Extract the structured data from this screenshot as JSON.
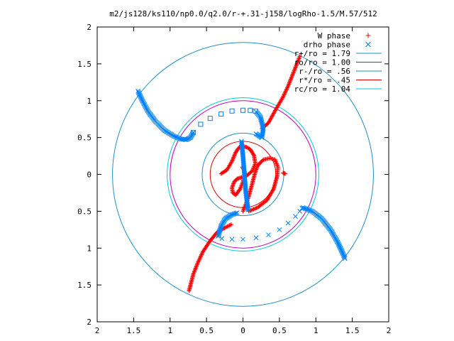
{
  "chart_data": {
    "type": "scatter",
    "title": "m2/js128/ks110/np0.0/q2.0/r-+.31-j158/logRho-1.5/M.57/512",
    "xlim": [
      -2,
      2
    ],
    "ylim": [
      -2,
      2
    ],
    "x_ticks": [
      -2,
      -1.5,
      -1,
      -0.5,
      0,
      0.5,
      1,
      1.5,
      2
    ],
    "y_ticks": [
      -2,
      -1.5,
      -1,
      -0.5,
      0,
      0.5,
      1,
      1.5,
      2
    ],
    "x_tick_labels": [
      "2",
      "1.5",
      "1",
      "0.5",
      "0",
      "0.5",
      "1",
      "1.5",
      "2"
    ],
    "y_tick_labels": [
      "2",
      "1.5",
      "1",
      "0.5",
      "0",
      "0.5",
      "1",
      "1.5",
      "2"
    ],
    "grid": false,
    "legend_position": "top-right",
    "legend": [
      {
        "label": "W phase",
        "color": "#ff0000",
        "marker": "plus"
      },
      {
        "label": "drho phase",
        "color": "#0080ff",
        "marker": "cross"
      },
      {
        "label": "r+/ro = 1.79",
        "color": "#1e90c8",
        "marker": "line"
      },
      {
        "label": "ro/ro = 1.00",
        "color": "#c000c0",
        "marker": "line"
      },
      {
        "label": "r-/ro = .56",
        "color": "#1e90c8",
        "marker": "line"
      },
      {
        "label": "r*/ro = .45",
        "color": "#e00000",
        "marker": "line"
      },
      {
        "label": "rc/ro = 1.04",
        "color": "#00c8d8",
        "marker": "line"
      }
    ],
    "circles": [
      {
        "name": "r+/ro",
        "radius": 1.79,
        "color": "#1e90c8"
      },
      {
        "name": "ro/ro",
        "radius": 1.0,
        "color": "#c000c0"
      },
      {
        "name": "r-/ro",
        "radius": 0.56,
        "color": "#1e90c8"
      },
      {
        "name": "r*/ro",
        "radius": 0.45,
        "color": "#e00000"
      },
      {
        "name": "rc/ro",
        "radius": 1.04,
        "color": "#00c8d8"
      }
    ],
    "series": [
      {
        "name": "W phase",
        "color": "#ff0000",
        "marker": "plus",
        "segments": [
          [
            [
              0.58,
              0.01
            ],
            [
              0.55,
              0.02
            ]
          ],
          [
            [
              -0.3,
              0.01
            ],
            [
              -0.22,
              0.06
            ],
            [
              -0.15,
              0.18
            ],
            [
              -0.1,
              0.3
            ],
            [
              -0.05,
              0.37
            ],
            [
              0.0,
              0.38
            ],
            [
              0.05,
              0.37
            ],
            [
              0.1,
              0.34
            ],
            [
              0.15,
              0.26
            ],
            [
              0.17,
              0.15
            ],
            [
              0.13,
              0.05
            ],
            [
              0.05,
              -0.02
            ],
            [
              -0.02,
              -0.04
            ],
            [
              -0.08,
              -0.06
            ],
            [
              -0.12,
              -0.1
            ],
            [
              -0.15,
              -0.18
            ],
            [
              -0.14,
              -0.25
            ],
            [
              -0.1,
              -0.28
            ],
            [
              -0.04,
              -0.2
            ],
            [
              0.0,
              -0.1
            ],
            [
              0.03,
              -0.02
            ],
            [
              0.02,
              0.05
            ],
            [
              -0.01,
              0.1
            ]
          ],
          [
            [
              0.0,
              -0.5
            ],
            [
              0.04,
              -0.4
            ],
            [
              0.08,
              -0.3
            ],
            [
              0.12,
              -0.15
            ],
            [
              0.16,
              0.0
            ],
            [
              0.2,
              0.12
            ],
            [
              0.28,
              0.2
            ],
            [
              0.37,
              0.22
            ],
            [
              0.44,
              0.2
            ],
            [
              0.48,
              0.1
            ],
            [
              0.47,
              -0.02
            ],
            [
              0.42,
              -0.2
            ],
            [
              0.33,
              -0.35
            ],
            [
              0.2,
              -0.45
            ],
            [
              0.08,
              -0.5
            ]
          ],
          [
            [
              0.26,
              0.62
            ],
            [
              0.35,
              0.7
            ],
            [
              0.45,
              0.88
            ],
            [
              0.55,
              1.05
            ],
            [
              0.62,
              1.2
            ],
            [
              0.68,
              1.35
            ],
            [
              0.74,
              1.5
            ],
            [
              0.78,
              1.6
            ]
          ],
          [
            [
              -0.16,
              -0.68
            ],
            [
              -0.24,
              -0.72
            ],
            [
              -0.35,
              -0.78
            ],
            [
              -0.45,
              -0.9
            ],
            [
              -0.55,
              -1.05
            ],
            [
              -0.62,
              -1.2
            ],
            [
              -0.68,
              -1.35
            ],
            [
              -0.72,
              -1.5
            ],
            [
              -0.74,
              -1.58
            ]
          ]
        ]
      },
      {
        "name": "drho phase",
        "color": "#0080ff",
        "marker": "cross",
        "segments": [
          [
            [
              -1.44,
              1.13
            ],
            [
              -1.38,
              1.0
            ],
            [
              -1.3,
              0.85
            ],
            [
              -1.2,
              0.72
            ],
            [
              -1.08,
              0.6
            ],
            [
              -0.95,
              0.52
            ],
            [
              -0.85,
              0.48
            ],
            [
              -0.78,
              0.47
            ],
            [
              -0.72,
              0.5
            ],
            [
              -0.68,
              0.57
            ]
          ],
          [
            [
              0.18,
              0.85
            ],
            [
              0.24,
              0.78
            ],
            [
              0.28,
              0.62
            ],
            [
              0.26,
              0.5
            ],
            [
              0.18,
              0.55
            ]
          ],
          [
            [
              -0.02,
              0.45
            ],
            [
              0.0,
              0.25
            ],
            [
              0.02,
              0.0
            ],
            [
              0.04,
              -0.25
            ],
            [
              0.06,
              -0.4
            ],
            [
              0.07,
              -0.48
            ]
          ],
          [
            [
              -0.34,
              -0.84
            ],
            [
              -0.3,
              -0.7
            ],
            [
              -0.24,
              -0.6
            ],
            [
              -0.16,
              -0.55
            ],
            [
              -0.08,
              -0.52
            ]
          ],
          [
            [
              0.82,
              -0.45
            ],
            [
              0.95,
              -0.5
            ],
            [
              1.08,
              -0.6
            ],
            [
              1.2,
              -0.75
            ],
            [
              1.3,
              -0.92
            ],
            [
              1.36,
              -1.05
            ],
            [
              1.4,
              -1.14
            ]
          ]
        ],
        "sparse_points": [
          [
            -0.68,
            0.57
          ],
          [
            -0.58,
            0.68
          ],
          [
            -0.45,
            0.76
          ],
          [
            -0.3,
            0.82
          ],
          [
            -0.15,
            0.86
          ],
          [
            0.0,
            0.87
          ],
          [
            0.1,
            0.87
          ],
          [
            0.17,
            0.86
          ],
          [
            -0.29,
            -0.87
          ],
          [
            -0.15,
            -0.88
          ],
          [
            0.0,
            -0.88
          ],
          [
            0.18,
            -0.86
          ],
          [
            0.35,
            -0.82
          ],
          [
            0.5,
            -0.75
          ],
          [
            0.62,
            -0.66
          ],
          [
            0.72,
            -0.57
          ],
          [
            0.78,
            -0.5
          ],
          [
            0.81,
            -0.46
          ]
        ]
      }
    ]
  }
}
